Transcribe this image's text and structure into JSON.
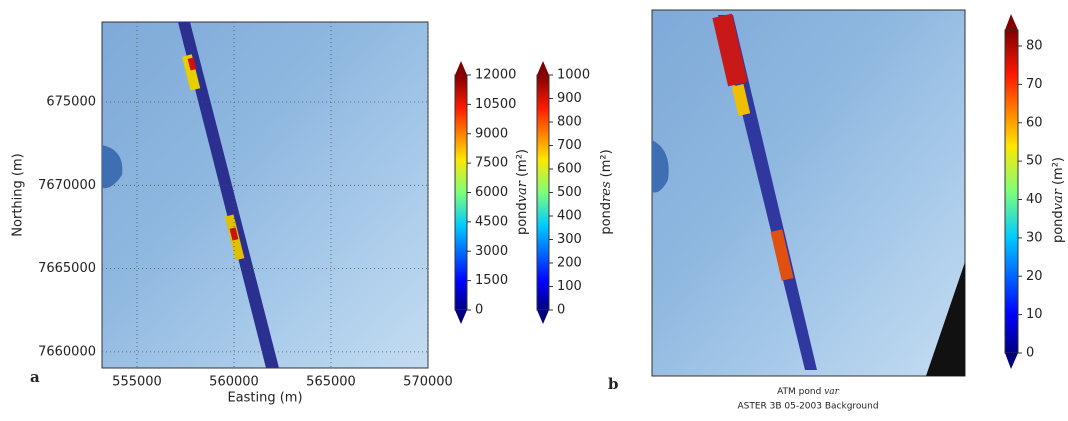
{
  "panel_a": {
    "label": "a",
    "xlabel": "Easting (m)",
    "ylabel": "Northing (m)",
    "xticks": [
      "555000",
      "560000",
      "565000",
      "570000"
    ],
    "yticks": [
      "675000",
      "7670000",
      "7665000",
      "7660000"
    ],
    "colorbars": [
      {
        "name": "pond",
        "sub": "var",
        "unit": "(m²)",
        "ticks": [
          "0",
          "1500",
          "3000",
          "4500",
          "6000",
          "7500",
          "9000",
          "10500",
          "12000"
        ]
      },
      {
        "name": "pond",
        "sub": "res",
        "unit": "(m²)",
        "ticks": [
          "0",
          "100",
          "200",
          "300",
          "400",
          "500",
          "600",
          "700",
          "800",
          "900",
          "1000"
        ]
      }
    ]
  },
  "panel_b": {
    "label": "b",
    "caption_main": "ATM pond",
    "caption_sub": "var",
    "caption_line2": "ASTER 3B 05-2003 Background",
    "colorbar": {
      "name": "pond",
      "sub": "var",
      "unit": "(m²)",
      "ticks": [
        "0",
        "10",
        "20",
        "30",
        "40",
        "50",
        "60",
        "70",
        "80"
      ]
    }
  }
}
